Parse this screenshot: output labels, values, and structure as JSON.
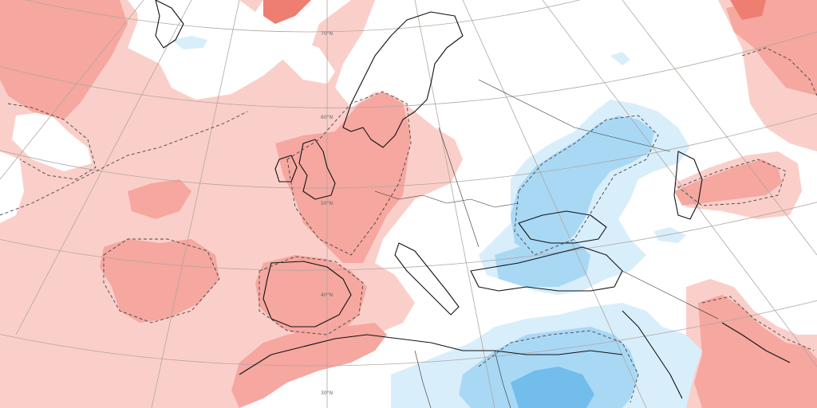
{
  "map": {
    "latitude_labels": [
      "70°N",
      "60°N",
      "50°N",
      "40°N",
      "30°N"
    ],
    "colors": {
      "warm_light": "#fbcfc9",
      "warm_mid": "#f5a7a0",
      "warm_strong": "#ee7d72",
      "cool_light": "#d8eefb",
      "cool_mid": "#a9d8f5",
      "cool_strong": "#72bdeb",
      "coastline": "#111111",
      "graticule": "#b0a79f",
      "background": "#ffffff"
    }
  }
}
